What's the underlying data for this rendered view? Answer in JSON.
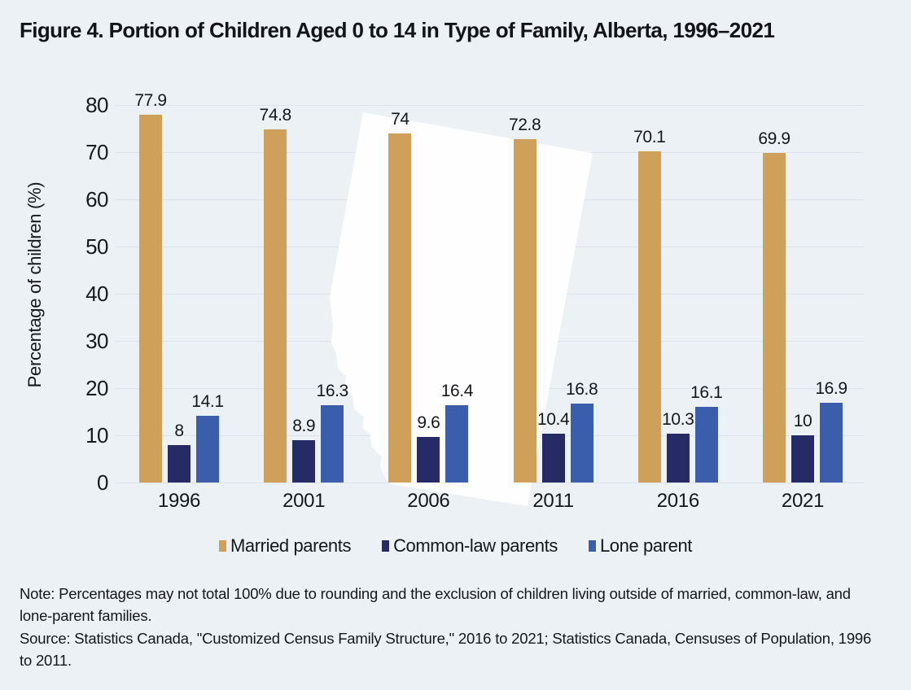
{
  "title": "Figure 4. Portion of Children Aged 0 to 14 in Type of Family, Alberta, 1996–2021",
  "chart_data": {
    "type": "bar",
    "categories": [
      "1996",
      "2001",
      "2006",
      "2011",
      "2016",
      "2021"
    ],
    "series": [
      {
        "name": "Married parents",
        "color": "#CFA05A",
        "values": [
          77.9,
          74.8,
          74,
          72.8,
          70.1,
          69.9
        ]
      },
      {
        "name": "Common-law parents",
        "color": "#262B66",
        "values": [
          8,
          8.9,
          9.6,
          10.4,
          10.3,
          10
        ]
      },
      {
        "name": "Lone parent",
        "color": "#3A5DAC",
        "values": [
          14.1,
          16.3,
          16.4,
          16.8,
          16.1,
          16.9
        ]
      }
    ],
    "ylabel": "Percentage of children (%)",
    "ylim": [
      0,
      80
    ],
    "ytick_step": 10,
    "yticks": [
      0,
      10,
      20,
      30,
      40,
      50,
      60,
      70,
      80
    ],
    "grid": true,
    "legend_position": "bottom",
    "data_labels": true,
    "watermark": "alberta-province-silhouette"
  },
  "notes": {
    "note": "Note: Percentages may not total 100% due to rounding and the exclusion of children living outside of married, common-law, and lone-parent families.",
    "source": "Source: Statistics Canada, \"Customized Census Family Structure,\" 2016 to 2021; Statistics Canada, Censuses of Population, 1996 to 2011."
  },
  "colors": {
    "background": "#ECF1F5",
    "gridline": "#DDE3E9",
    "text": "#15171C",
    "watermark": "#FFFFFF"
  }
}
